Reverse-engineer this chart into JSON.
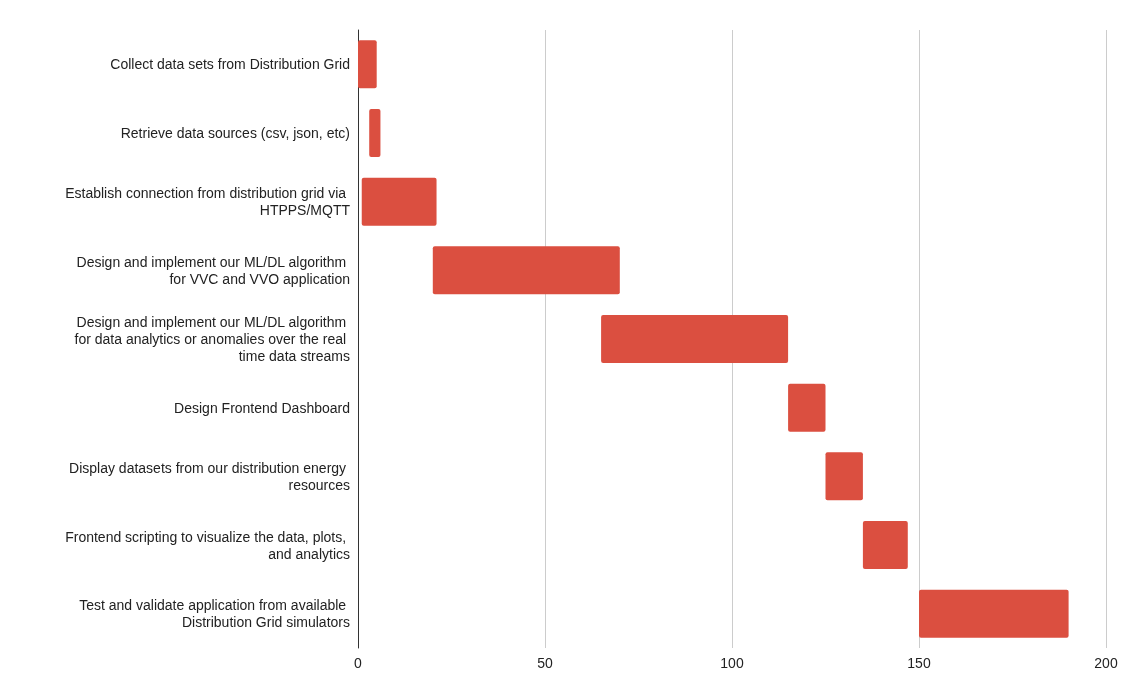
{
  "chart_data": {
    "type": "bar",
    "orientation": "horizontal",
    "categories": [
      "Collect data sets from Distribution Grid",
      "Retrieve data sources (csv, json, etc)",
      "Establish connection from distribution grid via HTPPS/MQTT",
      "Design and implement our ML/DL algorithm for VVC and VVO application",
      "Design and implement our ML/DL algorithm for data analytics or anomalies over the real time data streams",
      "Design Frontend Dashboard",
      "Display datasets from our distribution energy resources",
      "Frontend scripting to visualize the data, plots, and analytics",
      "Test and validate application from available Distribution Grid simulators"
    ],
    "base": [
      0,
      3,
      1,
      20,
      65,
      115,
      125,
      135,
      150
    ],
    "values": [
      5,
      3,
      20,
      50,
      50,
      10,
      10,
      12,
      40
    ],
    "color": "#db4f40",
    "xlim": [
      0,
      200
    ],
    "xticks": [
      0,
      50,
      100,
      150,
      200
    ],
    "grid": "x"
  }
}
